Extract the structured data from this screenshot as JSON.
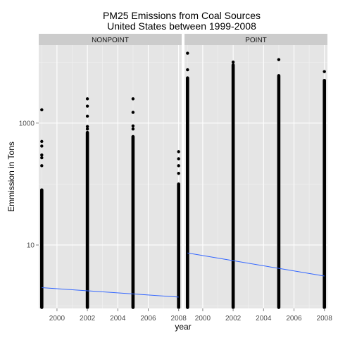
{
  "chart_data": {
    "type": "scatter",
    "title": "PM25 Emissions from Coal Sources\nUnited States between 1999-2008",
    "xlabel": "year",
    "ylabel": "Emmission in Tons",
    "y_scale": "log10",
    "x_ticks": [
      2000,
      2002,
      2004,
      2006,
      2008
    ],
    "y_ticks": [
      10,
      1000
    ],
    "xlim": [
      1998.8,
      2008.2
    ],
    "grid": true,
    "legend": "none",
    "colors": {
      "panel_bg": "#E5E5E5",
      "strip_bg": "#CCCCCC",
      "grid_major": "#FFFFFF",
      "grid_minor": "#F2F2F2",
      "points": "#000000",
      "trend": "#3366FF"
    },
    "panels": [
      {
        "name": "NONPOINT",
        "points": [
          {
            "year": 1999,
            "min": 1,
            "max_dense": 80,
            "outliers": [
              200,
              270,
              300,
              420,
              500,
              1650
            ]
          },
          {
            "year": 2002,
            "min": 1,
            "max_dense": 700,
            "outliers": [
              800,
              880,
              1300,
              1900,
              2500
            ]
          },
          {
            "year": 2005,
            "min": 1,
            "max_dense": 600,
            "outliers": [
              800,
              900,
              1500,
              2500
            ]
          },
          {
            "year": 2008,
            "min": 1,
            "max_dense": 100,
            "outliers": [
              150,
              200,
              260,
              340
            ]
          }
        ],
        "trend": [
          {
            "year": 1999,
            "value": 2.0
          },
          {
            "year": 2008,
            "value": 1.4
          }
        ]
      },
      {
        "name": "POINT",
        "points": [
          {
            "year": 1999,
            "min": 1,
            "max_dense": 5500,
            "outliers": [
              7500,
              14000
            ]
          },
          {
            "year": 2002,
            "min": 1,
            "max_dense": 9000,
            "outliers": [
              10000
            ]
          },
          {
            "year": 2005,
            "min": 1,
            "max_dense": 6000,
            "outliers": [
              11000
            ]
          },
          {
            "year": 2008,
            "min": 1,
            "max_dense": 5000,
            "outliers": [
              7000
            ]
          }
        ],
        "trend": [
          {
            "year": 1999,
            "value": 7.4
          },
          {
            "year": 2008,
            "value": 3.1
          }
        ]
      }
    ]
  }
}
